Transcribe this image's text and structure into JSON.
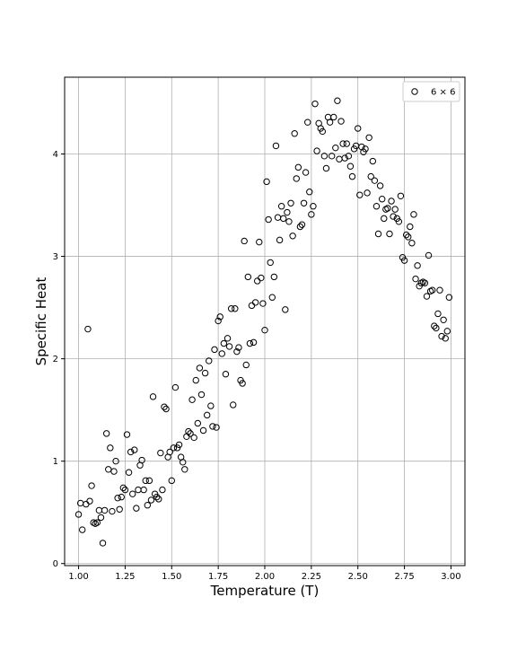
{
  "chart_data": {
    "type": "scatter",
    "title": "",
    "xlabel": "Temperature (T)",
    "ylabel": "Specific Heat",
    "xlim": [
      0.925,
      3.075
    ],
    "ylim": [
      -0.02,
      4.75
    ],
    "xticks": [
      1.0,
      1.25,
      1.5,
      1.75,
      2.0,
      2.25,
      2.5,
      2.75,
      3.0
    ],
    "xtick_labels": [
      "1.00",
      "1.25",
      "1.50",
      "1.75",
      "2.00",
      "2.25",
      "2.50",
      "2.75",
      "3.00"
    ],
    "yticks": [
      0,
      1,
      2,
      3,
      4
    ],
    "ytick_labels": [
      "0",
      "1",
      "2",
      "3",
      "4"
    ],
    "grid": true,
    "legend_position": "top-right",
    "series": [
      {
        "name": "6 × 6",
        "marker": "open-circle",
        "color": "#000000",
        "points": [
          [
            1.0,
            0.48
          ],
          [
            1.01,
            0.59
          ],
          [
            1.02,
            0.33
          ],
          [
            1.04,
            0.58
          ],
          [
            1.05,
            2.29
          ],
          [
            1.06,
            0.61
          ],
          [
            1.07,
            0.76
          ],
          [
            1.08,
            0.4
          ],
          [
            1.09,
            0.39
          ],
          [
            1.1,
            0.4
          ],
          [
            1.11,
            0.52
          ],
          [
            1.12,
            0.45
          ],
          [
            1.13,
            0.2
          ],
          [
            1.14,
            0.52
          ],
          [
            1.15,
            1.27
          ],
          [
            1.16,
            0.92
          ],
          [
            1.17,
            1.13
          ],
          [
            1.18,
            0.51
          ],
          [
            1.19,
            0.9
          ],
          [
            1.2,
            1.0
          ],
          [
            1.21,
            0.64
          ],
          [
            1.22,
            0.53
          ],
          [
            1.23,
            0.65
          ],
          [
            1.24,
            0.74
          ],
          [
            1.25,
            0.72
          ],
          [
            1.26,
            1.26
          ],
          [
            1.27,
            0.89
          ],
          [
            1.28,
            1.09
          ],
          [
            1.29,
            0.68
          ],
          [
            1.3,
            1.11
          ],
          [
            1.31,
            0.54
          ],
          [
            1.32,
            0.72
          ],
          [
            1.33,
            0.96
          ],
          [
            1.34,
            1.01
          ],
          [
            1.35,
            0.72
          ],
          [
            1.36,
            0.81
          ],
          [
            1.37,
            0.57
          ],
          [
            1.38,
            0.81
          ],
          [
            1.39,
            0.62
          ],
          [
            1.4,
            1.63
          ],
          [
            1.41,
            0.68
          ],
          [
            1.42,
            0.65
          ],
          [
            1.43,
            0.63
          ],
          [
            1.44,
            1.08
          ],
          [
            1.45,
            0.72
          ],
          [
            1.46,
            1.53
          ],
          [
            1.47,
            1.51
          ],
          [
            1.48,
            1.04
          ],
          [
            1.49,
            1.09
          ],
          [
            1.5,
            0.81
          ],
          [
            1.51,
            1.13
          ],
          [
            1.52,
            1.72
          ],
          [
            1.53,
            1.13
          ],
          [
            1.54,
            1.16
          ],
          [
            1.55,
            1.04
          ],
          [
            1.56,
            0.99
          ],
          [
            1.57,
            0.92
          ],
          [
            1.58,
            1.24
          ],
          [
            1.59,
            1.29
          ],
          [
            1.6,
            1.27
          ],
          [
            1.61,
            1.6
          ],
          [
            1.62,
            1.23
          ],
          [
            1.63,
            1.79
          ],
          [
            1.64,
            1.37
          ],
          [
            1.65,
            1.91
          ],
          [
            1.66,
            1.65
          ],
          [
            1.67,
            1.3
          ],
          [
            1.68,
            1.86
          ],
          [
            1.69,
            1.45
          ],
          [
            1.7,
            1.98
          ],
          [
            1.71,
            1.54
          ],
          [
            1.72,
            1.34
          ],
          [
            1.73,
            2.09
          ],
          [
            1.74,
            1.33
          ],
          [
            1.75,
            2.37
          ],
          [
            1.76,
            2.41
          ],
          [
            1.77,
            2.05
          ],
          [
            1.78,
            2.15
          ],
          [
            1.79,
            1.85
          ],
          [
            1.8,
            2.2
          ],
          [
            1.81,
            2.12
          ],
          [
            1.82,
            2.49
          ],
          [
            1.83,
            1.55
          ],
          [
            1.84,
            2.49
          ],
          [
            1.85,
            2.07
          ],
          [
            1.86,
            2.11
          ],
          [
            1.87,
            1.79
          ],
          [
            1.88,
            1.76
          ],
          [
            1.89,
            3.15
          ],
          [
            1.9,
            1.94
          ],
          [
            1.91,
            2.8
          ],
          [
            1.92,
            2.15
          ],
          [
            1.93,
            2.52
          ],
          [
            1.94,
            2.16
          ],
          [
            1.95,
            2.55
          ],
          [
            1.96,
            2.76
          ],
          [
            1.97,
            3.14
          ],
          [
            1.98,
            2.79
          ],
          [
            1.99,
            2.54
          ],
          [
            2.0,
            2.28
          ],
          [
            2.01,
            3.73
          ],
          [
            2.02,
            3.36
          ],
          [
            2.03,
            2.94
          ],
          [
            2.04,
            2.6
          ],
          [
            2.05,
            2.8
          ],
          [
            2.06,
            4.08
          ],
          [
            2.07,
            3.38
          ],
          [
            2.08,
            3.16
          ],
          [
            2.09,
            3.49
          ],
          [
            2.1,
            3.37
          ],
          [
            2.11,
            2.48
          ],
          [
            2.12,
            3.43
          ],
          [
            2.13,
            3.34
          ],
          [
            2.14,
            3.52
          ],
          [
            2.15,
            3.2
          ],
          [
            2.16,
            4.2
          ],
          [
            2.17,
            3.76
          ],
          [
            2.18,
            3.87
          ],
          [
            2.19,
            3.29
          ],
          [
            2.2,
            3.31
          ],
          [
            2.21,
            3.52
          ],
          [
            2.22,
            3.82
          ],
          [
            2.23,
            4.31
          ],
          [
            2.24,
            3.63
          ],
          [
            2.25,
            3.41
          ],
          [
            2.26,
            3.49
          ],
          [
            2.27,
            4.49
          ],
          [
            2.28,
            4.03
          ],
          [
            2.29,
            4.3
          ],
          [
            2.3,
            4.25
          ],
          [
            2.31,
            4.22
          ],
          [
            2.32,
            3.98
          ],
          [
            2.33,
            3.86
          ],
          [
            2.34,
            4.36
          ],
          [
            2.35,
            4.31
          ],
          [
            2.36,
            3.98
          ],
          [
            2.37,
            4.36
          ],
          [
            2.38,
            4.06
          ],
          [
            2.39,
            4.52
          ],
          [
            2.4,
            3.95
          ],
          [
            2.41,
            4.32
          ],
          [
            2.42,
            4.1
          ],
          [
            2.43,
            3.96
          ],
          [
            2.44,
            4.1
          ],
          [
            2.45,
            3.98
          ],
          [
            2.46,
            3.88
          ],
          [
            2.47,
            3.78
          ],
          [
            2.48,
            4.05
          ],
          [
            2.49,
            4.08
          ],
          [
            2.5,
            4.25
          ],
          [
            2.51,
            3.6
          ],
          [
            2.52,
            4.07
          ],
          [
            2.53,
            4.02
          ],
          [
            2.54,
            4.05
          ],
          [
            2.55,
            3.62
          ],
          [
            2.56,
            4.16
          ],
          [
            2.57,
            3.78
          ],
          [
            2.58,
            3.93
          ],
          [
            2.59,
            3.74
          ],
          [
            2.6,
            3.49
          ],
          [
            2.61,
            3.22
          ],
          [
            2.62,
            3.69
          ],
          [
            2.63,
            3.56
          ],
          [
            2.64,
            3.37
          ],
          [
            2.65,
            3.46
          ],
          [
            2.66,
            3.47
          ],
          [
            2.67,
            3.22
          ],
          [
            2.68,
            3.54
          ],
          [
            2.69,
            3.39
          ],
          [
            2.7,
            3.46
          ],
          [
            2.71,
            3.37
          ],
          [
            2.72,
            3.34
          ],
          [
            2.73,
            3.59
          ],
          [
            2.74,
            2.99
          ],
          [
            2.75,
            2.96
          ],
          [
            2.76,
            3.21
          ],
          [
            2.77,
            3.19
          ],
          [
            2.78,
            3.29
          ],
          [
            2.79,
            3.13
          ],
          [
            2.8,
            3.41
          ],
          [
            2.81,
            2.78
          ],
          [
            2.82,
            2.91
          ],
          [
            2.83,
            2.71
          ],
          [
            2.84,
            2.74
          ],
          [
            2.85,
            2.75
          ],
          [
            2.86,
            2.74
          ],
          [
            2.87,
            2.61
          ],
          [
            2.88,
            3.01
          ],
          [
            2.89,
            2.66
          ],
          [
            2.9,
            2.67
          ],
          [
            2.91,
            2.32
          ],
          [
            2.92,
            2.3
          ],
          [
            2.93,
            2.44
          ],
          [
            2.94,
            2.67
          ],
          [
            2.95,
            2.22
          ],
          [
            2.96,
            2.38
          ],
          [
            2.97,
            2.2
          ],
          [
            2.98,
            2.27
          ],
          [
            2.99,
            2.6
          ]
        ]
      }
    ]
  }
}
